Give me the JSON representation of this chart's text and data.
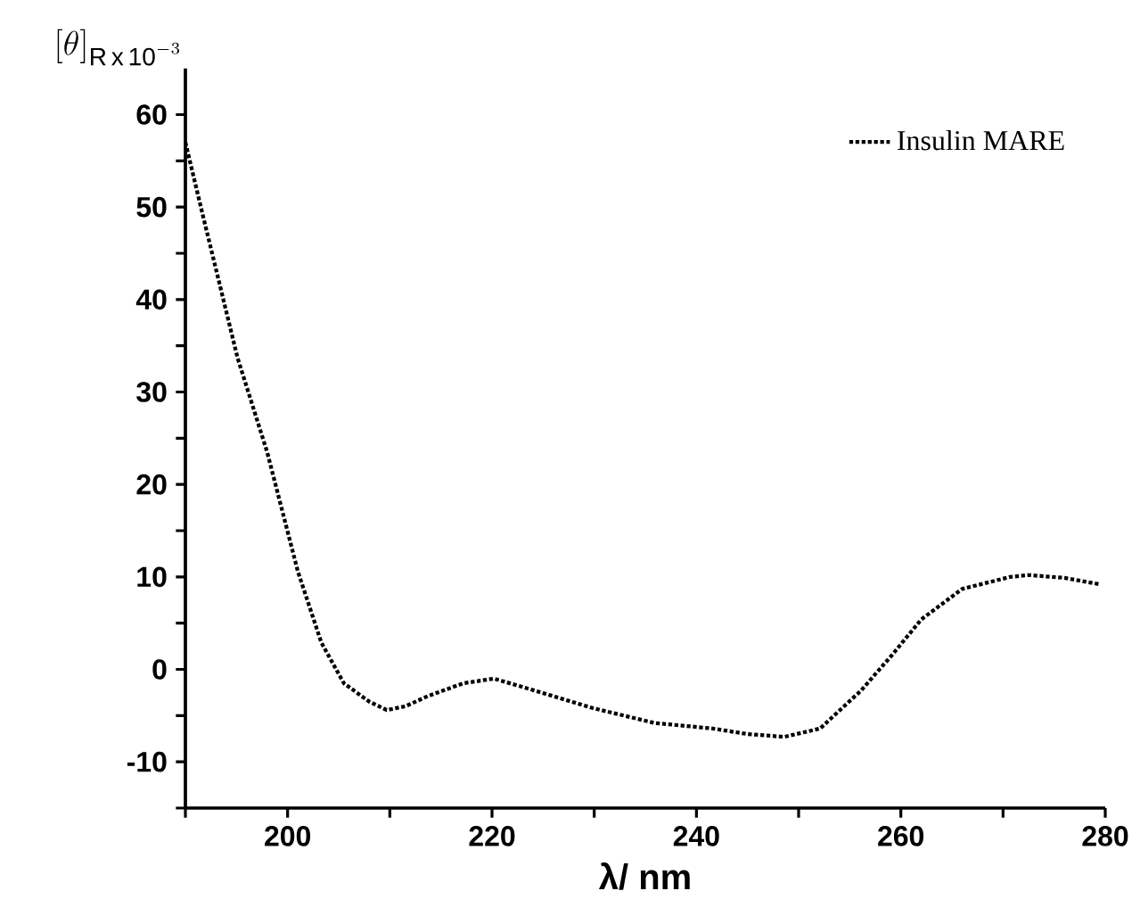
{
  "chart_data": {
    "type": "line",
    "xlabel": "λ/ nm",
    "ylabel": "[\\theta]_{\\mathrm{R\\,x\\,10}^{-3}}",
    "xlim": [
      190,
      280
    ],
    "ylim": [
      -15,
      65
    ],
    "xticks": [
      {
        "value": 190,
        "label": null
      },
      200,
      {
        "value": 210,
        "label": null
      },
      220,
      {
        "value": 230,
        "label": null
      },
      240,
      {
        "value": 250,
        "label": null
      },
      260,
      {
        "value": 270,
        "label": null
      },
      280
    ],
    "yticks": [
      {
        "value": -15,
        "label": null
      },
      -10,
      {
        "value": -5,
        "label": null
      },
      0,
      {
        "value": 5,
        "label": null
      },
      10,
      {
        "value": 15,
        "label": null
      },
      20,
      {
        "value": 25,
        "label": null
      },
      30,
      {
        "value": 35,
        "label": null
      },
      40,
      {
        "value": 45,
        "label": null
      },
      50,
      {
        "value": 55,
        "label": null
      },
      60
    ],
    "legend": "top right",
    "line_style": "dotted",
    "marker": "none",
    "series": [
      {
        "name": "Insulin MARE",
        "color": "#000000",
        "x": [
          190,
          191.6,
          195.1,
          198,
          201,
          203.3,
          205.5,
          208,
          209.7,
          211.5,
          213.7,
          217.2,
          220.2,
          224.2,
          229.9,
          235.9,
          241.6,
          245,
          248.6,
          252.1,
          256.1,
          259.1,
          262,
          266,
          270.7,
          272.5,
          276,
          279.5
        ],
        "values": [
          57,
          49.6,
          33.7,
          23.5,
          10.6,
          2.9,
          -1.5,
          -3.5,
          -4.4,
          -4,
          -2.9,
          -1.5,
          -1,
          -2.3,
          -4.2,
          -5.8,
          -6.4,
          -7,
          -7.3,
          -6.4,
          -2.3,
          1.5,
          5.4,
          8.7,
          10,
          10.2,
          9.9,
          9.2
        ]
      }
    ]
  }
}
